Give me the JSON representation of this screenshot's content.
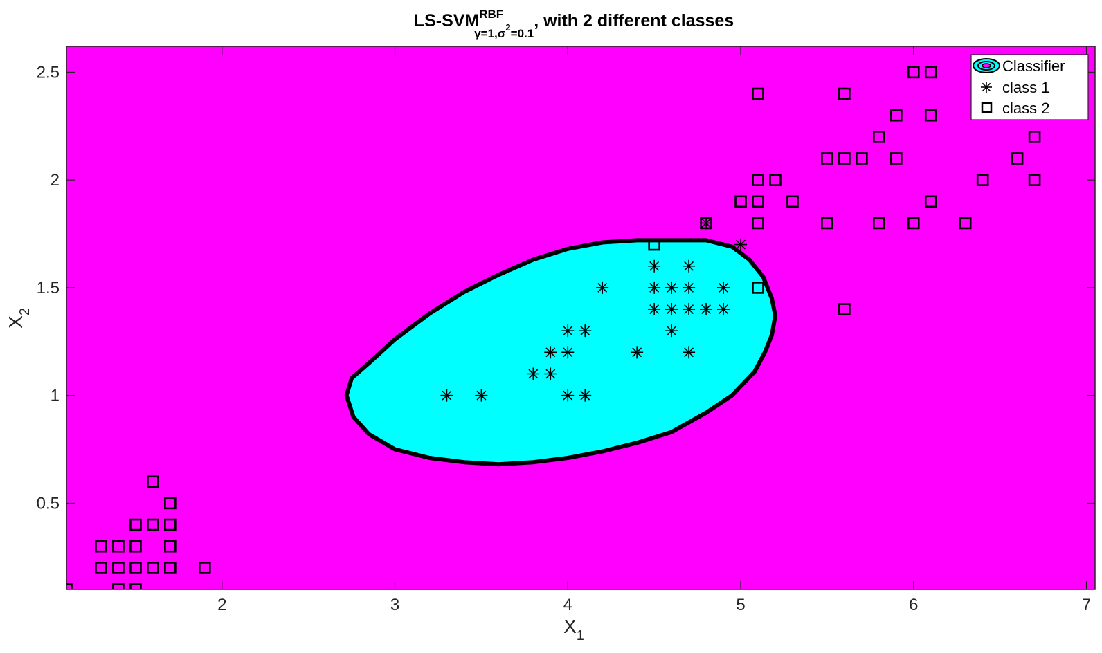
{
  "chart_data": {
    "type": "scatter",
    "title": {
      "main": "LS-SVM",
      "superscript": "RBF",
      "subscript_gamma": "γ=1,",
      "subscript_sigma": "σ",
      "subscript_sigma_sup": "2",
      "subscript_rest": "=0.1",
      "suffix": ", with 2 different classes"
    },
    "xlabel": {
      "base": "X",
      "sub": "1"
    },
    "ylabel": {
      "base": "X",
      "sub": "2"
    },
    "xlim": [
      1.1,
      7.05
    ],
    "ylim": [
      0.1,
      2.62
    ],
    "xticks": [
      2,
      3,
      4,
      5,
      6,
      7
    ],
    "yticks": [
      0.5,
      1,
      1.5,
      2,
      2.5
    ],
    "xtick_labels": [
      "2",
      "3",
      "4",
      "5",
      "6",
      "7"
    ],
    "ytick_labels": [
      "0.5",
      "1",
      "1.5",
      "2",
      "2.5"
    ],
    "grid": false,
    "legend_position": "top-right",
    "colors": {
      "background_region": "#ff00ff",
      "classifier_region": "#00ffff",
      "boundary": "#000000",
      "markers": "#000000"
    },
    "classifier_boundary": [
      [
        2.72,
        1.0
      ],
      [
        2.75,
        1.08
      ],
      [
        2.85,
        1.15
      ],
      [
        3.0,
        1.26
      ],
      [
        3.2,
        1.38
      ],
      [
        3.4,
        1.48
      ],
      [
        3.6,
        1.56
      ],
      [
        3.8,
        1.63
      ],
      [
        4.0,
        1.68
      ],
      [
        4.2,
        1.71
      ],
      [
        4.4,
        1.72
      ],
      [
        4.6,
        1.72
      ],
      [
        4.8,
        1.72
      ],
      [
        4.95,
        1.69
      ],
      [
        5.05,
        1.63
      ],
      [
        5.13,
        1.55
      ],
      [
        5.18,
        1.45
      ],
      [
        5.2,
        1.37
      ],
      [
        5.18,
        1.28
      ],
      [
        5.14,
        1.2
      ],
      [
        5.08,
        1.11
      ],
      [
        4.95,
        1.0
      ],
      [
        4.8,
        0.92
      ],
      [
        4.6,
        0.83
      ],
      [
        4.4,
        0.78
      ],
      [
        4.2,
        0.74
      ],
      [
        4.0,
        0.71
      ],
      [
        3.8,
        0.69
      ],
      [
        3.6,
        0.68
      ],
      [
        3.4,
        0.69
      ],
      [
        3.2,
        0.71
      ],
      [
        3.0,
        0.75
      ],
      [
        2.85,
        0.82
      ],
      [
        2.76,
        0.9
      ],
      [
        2.72,
        1.0
      ]
    ],
    "series": [
      {
        "name": "class 1",
        "marker": "asterisk",
        "points": [
          [
            3.3,
            1.0
          ],
          [
            3.5,
            1.0
          ],
          [
            3.8,
            1.1
          ],
          [
            3.9,
            1.1
          ],
          [
            3.9,
            1.2
          ],
          [
            4.0,
            1.2
          ],
          [
            4.0,
            1.3
          ],
          [
            4.1,
            1.3
          ],
          [
            4.0,
            1.0
          ],
          [
            4.1,
            1.0
          ],
          [
            4.2,
            1.5
          ],
          [
            4.4,
            1.2
          ],
          [
            4.5,
            1.4
          ],
          [
            4.5,
            1.5
          ],
          [
            4.5,
            1.6
          ],
          [
            4.6,
            1.3
          ],
          [
            4.6,
            1.4
          ],
          [
            4.6,
            1.5
          ],
          [
            4.7,
            1.2
          ],
          [
            4.7,
            1.4
          ],
          [
            4.7,
            1.5
          ],
          [
            4.7,
            1.6
          ],
          [
            4.8,
            1.4
          ],
          [
            4.8,
            1.8
          ],
          [
            4.9,
            1.4
          ],
          [
            4.9,
            1.5
          ],
          [
            5.0,
            1.7
          ]
        ]
      },
      {
        "name": "class 2",
        "marker": "square",
        "points": [
          [
            1.1,
            0.1
          ],
          [
            1.4,
            0.1
          ],
          [
            1.5,
            0.1
          ],
          [
            1.3,
            0.2
          ],
          [
            1.4,
            0.2
          ],
          [
            1.5,
            0.2
          ],
          [
            1.6,
            0.2
          ],
          [
            1.7,
            0.2
          ],
          [
            1.9,
            0.2
          ],
          [
            1.3,
            0.3
          ],
          [
            1.4,
            0.3
          ],
          [
            1.5,
            0.3
          ],
          [
            1.7,
            0.3
          ],
          [
            1.5,
            0.4
          ],
          [
            1.6,
            0.4
          ],
          [
            1.7,
            0.4
          ],
          [
            1.7,
            0.5
          ],
          [
            1.6,
            0.6
          ],
          [
            4.5,
            1.7
          ],
          [
            5.1,
            1.5
          ],
          [
            5.6,
            1.4
          ],
          [
            4.8,
            1.8
          ],
          [
            5.0,
            1.9
          ],
          [
            5.1,
            1.9
          ],
          [
            5.3,
            1.9
          ],
          [
            5.1,
            1.8
          ],
          [
            5.5,
            1.8
          ],
          [
            5.8,
            1.8
          ],
          [
            6.0,
            1.8
          ],
          [
            6.3,
            1.8
          ],
          [
            6.1,
            1.9
          ],
          [
            5.1,
            2.0
          ],
          [
            5.2,
            2.0
          ],
          [
            6.4,
            2.0
          ],
          [
            6.7,
            2.0
          ],
          [
            5.5,
            2.1
          ],
          [
            5.6,
            2.1
          ],
          [
            5.7,
            2.1
          ],
          [
            5.9,
            2.1
          ],
          [
            6.6,
            2.1
          ],
          [
            5.8,
            2.2
          ],
          [
            6.7,
            2.2
          ],
          [
            5.9,
            2.3
          ],
          [
            6.1,
            2.3
          ],
          [
            5.1,
            2.4
          ],
          [
            5.6,
            2.4
          ],
          [
            6.0,
            2.5
          ],
          [
            6.1,
            2.5
          ]
        ]
      }
    ],
    "legend": [
      {
        "label": "Classifier",
        "marker": "region"
      },
      {
        "label": "class 1",
        "marker": "asterisk"
      },
      {
        "label": "class 2",
        "marker": "square"
      }
    ]
  }
}
